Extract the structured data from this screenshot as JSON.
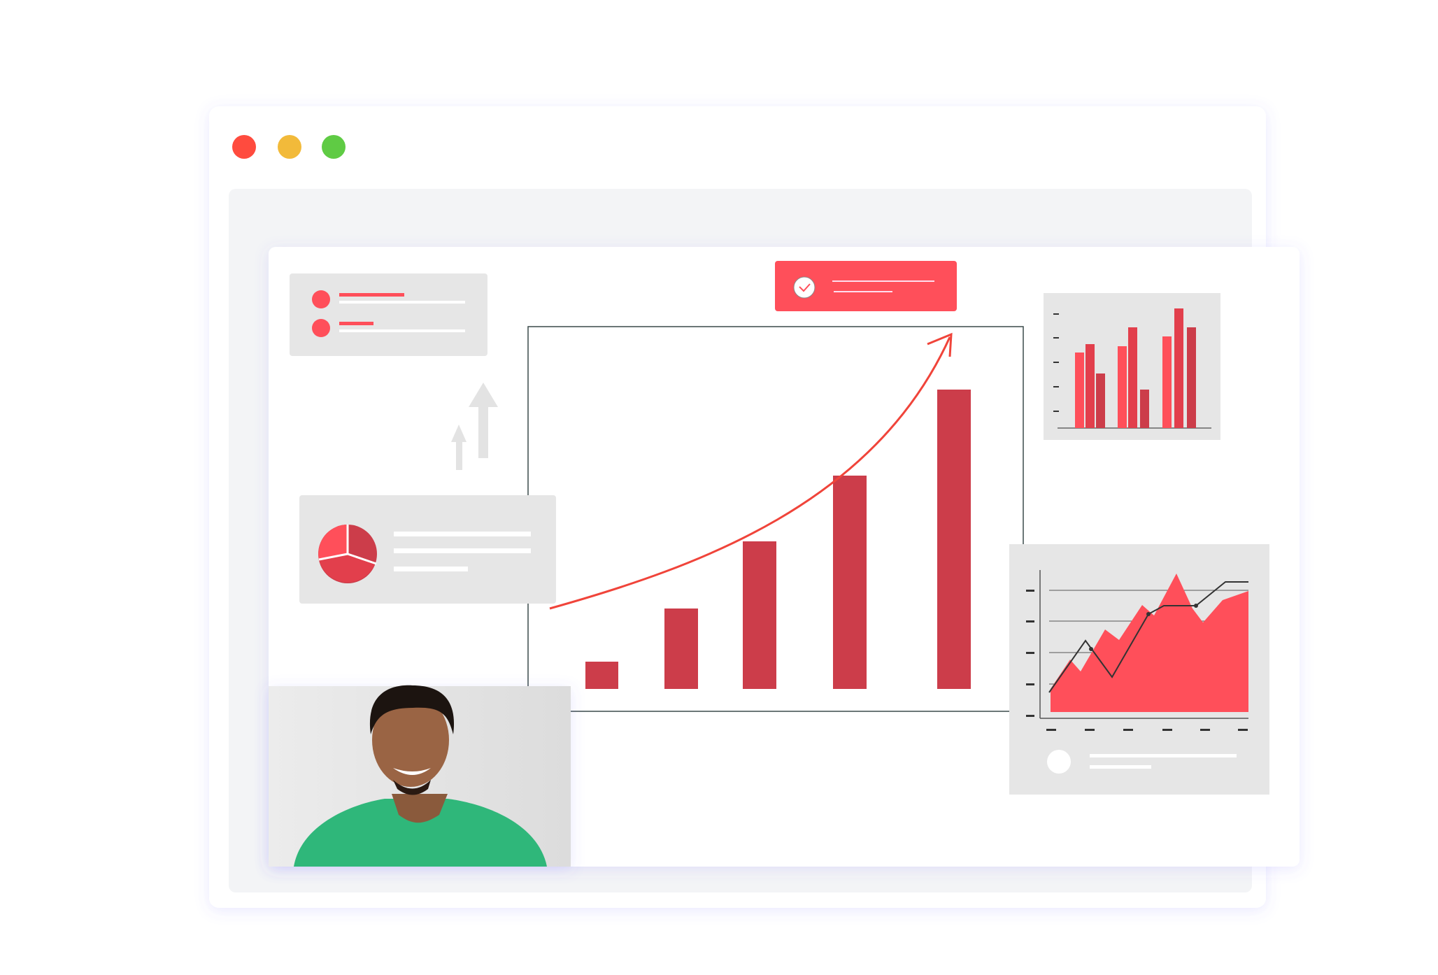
{
  "window": {
    "traffic_lights": {
      "close": "#FF4B3E",
      "minimize": "#F2BA3A",
      "maximize": "#5FCB44"
    }
  },
  "colors": {
    "accent": "#FF4F5A",
    "bar": "#CC3D4A",
    "panel": "#E6E6E6",
    "placeholder_line": "#FFFFFF",
    "trend_arrow": "#F0443A"
  },
  "icons": {
    "banner": "check-circle-icon",
    "growth": "up-arrows-icon",
    "summary": "pie-chart-icon"
  }
}
